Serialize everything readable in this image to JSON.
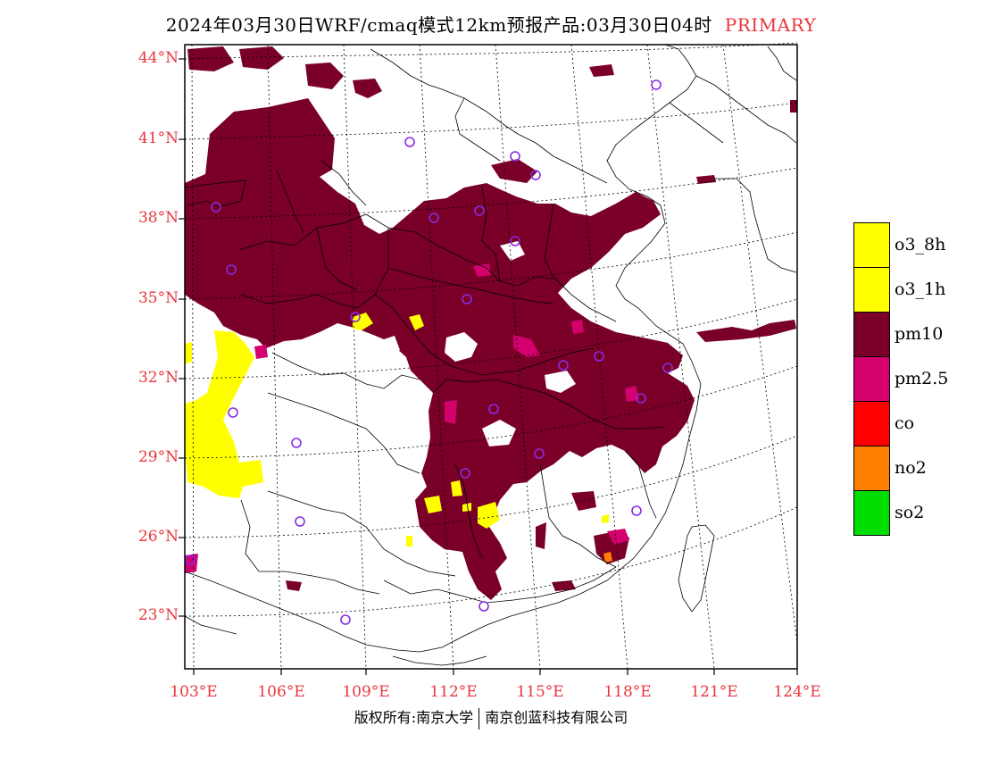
{
  "title": {
    "main": "2024年03月30日WRF/cmaq模式12km预报产品:03月30日04时",
    "tag": "PRIMARY"
  },
  "latitudes": [
    "44°N",
    "41°N",
    "38°N",
    "35°N",
    "32°N",
    "29°N",
    "26°N",
    "23°N"
  ],
  "longitudes": [
    "103°E",
    "106°E",
    "109°E",
    "112°E",
    "115°E",
    "118°E",
    "121°E",
    "124°E"
  ],
  "legend": [
    {
      "label": "o3_8h",
      "color": "#ffff00"
    },
    {
      "label": "o3_1h",
      "color": "#ffff00"
    },
    {
      "label": "pm10",
      "color": "#7a0028"
    },
    {
      "label": "pm2.5",
      "color": "#d4006e"
    },
    {
      "label": "co",
      "color": "#ff0000"
    },
    {
      "label": "no2",
      "color": "#ff7f00"
    },
    {
      "label": "so2",
      "color": "#00dd00"
    }
  ],
  "colors": {
    "pm10": "#7a0028",
    "pm25": "#d4006e",
    "o3": "#ffff00",
    "no2": "#ff7f00",
    "station": "#8a2be2",
    "label": "#e8363c"
  },
  "footer": {
    "left": "版权所有:南京大学",
    "right": "南京创蓝科技有限公司"
  }
}
